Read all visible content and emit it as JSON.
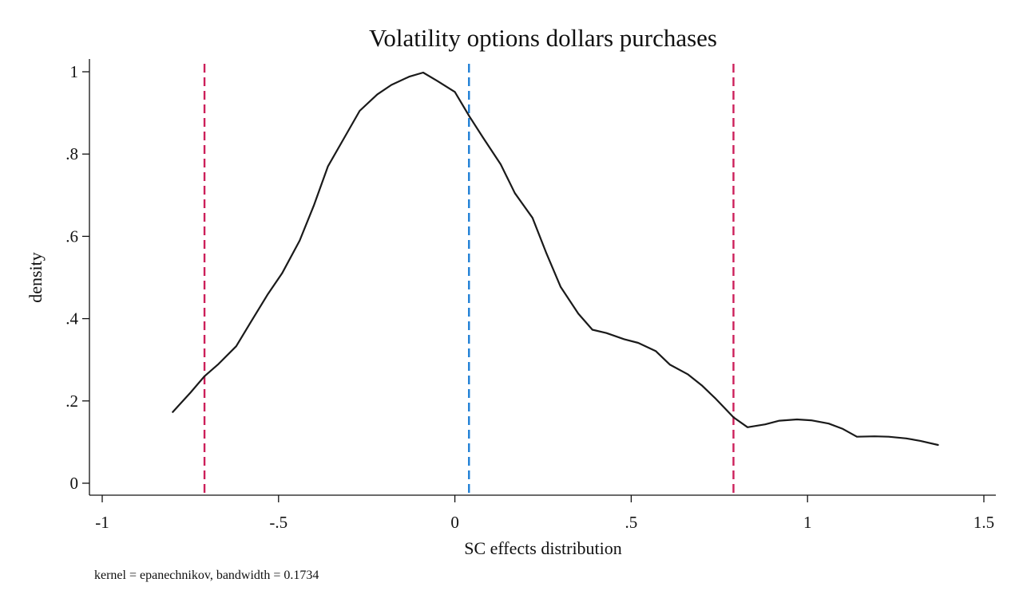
{
  "chart_data": {
    "type": "line",
    "title": "Volatility options dollars purchases",
    "xlabel": "SC effects distribution",
    "ylabel": "density",
    "note": "kernel = epanechnikov, bandwidth = 0.1734",
    "xlim": [
      -1,
      1.5
    ],
    "ylim": [
      0,
      1
    ],
    "x_ticks": [
      {
        "value": -1,
        "label": "-1"
      },
      {
        "value": -0.5,
        "label": "-.5"
      },
      {
        "value": 0,
        "label": "0"
      },
      {
        "value": 0.5,
        "label": ".5"
      },
      {
        "value": 1,
        "label": "1"
      },
      {
        "value": 1.5,
        "label": "1.5"
      }
    ],
    "y_ticks": [
      {
        "value": 0,
        "label": "0"
      },
      {
        "value": 0.2,
        "label": ".2"
      },
      {
        "value": 0.4,
        "label": ".4"
      },
      {
        "value": 0.6,
        "label": ".6"
      },
      {
        "value": 0.8,
        "label": ".8"
      },
      {
        "value": 1,
        "label": "1"
      }
    ],
    "grid": false,
    "series": [
      {
        "color": "#1a1a1a",
        "x": [
          -0.8,
          -0.75,
          -0.71,
          -0.67,
          -0.62,
          -0.58,
          -0.53,
          -0.49,
          -0.44,
          -0.4,
          -0.36,
          -0.31,
          -0.27,
          -0.22,
          -0.18,
          -0.13,
          -0.09,
          -0.05,
          0,
          0.04,
          0.08,
          0.13,
          0.17,
          0.22,
          0.26,
          0.3,
          0.35,
          0.39,
          0.43,
          0.48,
          0.52,
          0.57,
          0.61,
          0.66,
          0.7,
          0.74,
          0.79,
          0.83,
          0.88,
          0.92,
          0.97,
          1.01,
          1.06,
          1.1,
          1.14,
          1.19,
          1.23,
          1.28,
          1.32,
          1.37
        ],
        "y": [
          0.173,
          0.22,
          0.26,
          0.29,
          0.333,
          0.39,
          0.46,
          0.51,
          0.59,
          0.675,
          0.77,
          0.845,
          0.905,
          0.945,
          0.968,
          0.988,
          0.998,
          0.978,
          0.951,
          0.893,
          0.84,
          0.775,
          0.705,
          0.645,
          0.558,
          0.477,
          0.412,
          0.373,
          0.365,
          0.35,
          0.341,
          0.321,
          0.288,
          0.265,
          0.238,
          0.205,
          0.16,
          0.136,
          0.143,
          0.152,
          0.155,
          0.153,
          0.145,
          0.132,
          0.113,
          0.114,
          0.113,
          0.109,
          0.103,
          0.093
        ]
      }
    ],
    "reference_lines": [
      {
        "x": -0.71,
        "color": "#cc1f5a",
        "style": "dashed"
      },
      {
        "x": 0.04,
        "color": "#1f7fd6",
        "style": "dashed"
      },
      {
        "x": 0.79,
        "color": "#cc1f5a",
        "style": "dashed"
      }
    ]
  }
}
